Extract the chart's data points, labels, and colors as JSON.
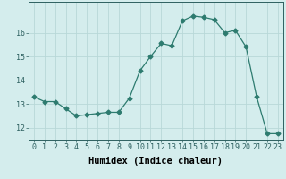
{
  "xlabel": "Humidex (Indice chaleur)",
  "x": [
    0,
    1,
    2,
    3,
    4,
    5,
    6,
    7,
    8,
    9,
    10,
    11,
    12,
    13,
    14,
    15,
    16,
    17,
    18,
    19,
    20,
    21,
    22,
    23
  ],
  "y": [
    13.3,
    13.1,
    13.1,
    12.8,
    12.5,
    12.55,
    12.6,
    12.65,
    12.65,
    13.25,
    14.4,
    15.0,
    15.55,
    15.45,
    16.5,
    16.7,
    16.65,
    16.55,
    16.0,
    16.1,
    15.4,
    13.3,
    11.75,
    11.75
  ],
  "line_color": "#2d7b6f",
  "marker": "D",
  "marker_size": 2.5,
  "bg_color": "#d4eded",
  "grid_color": "#b8d8d8",
  "ylim": [
    11.5,
    17.3
  ],
  "yticks": [
    12,
    13,
    14,
    15,
    16
  ],
  "xlim": [
    -0.5,
    23.5
  ],
  "tick_fontsize": 6,
  "label_fontsize": 7.5
}
